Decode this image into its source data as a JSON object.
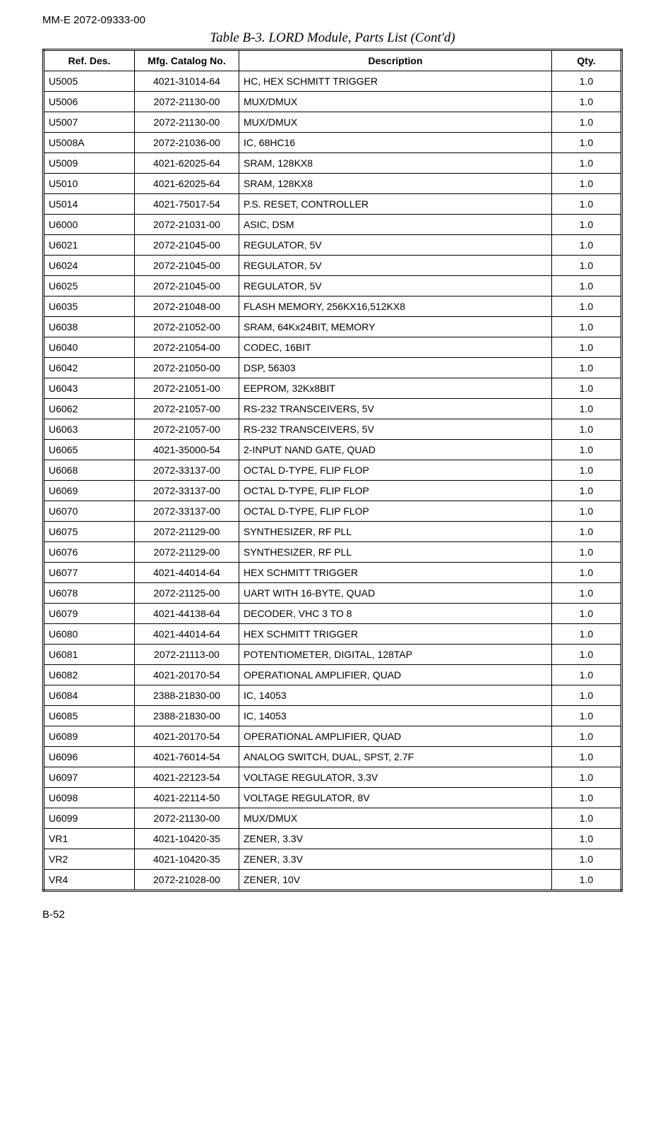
{
  "doc_id": "MM-E 2072-09333-00",
  "table_title": "Table B-3. LORD Module, Parts List (Cont'd)",
  "headers": {
    "ref": "Ref. Des.",
    "mfg": "Mfg. Catalog No.",
    "desc": "Description",
    "qty": "Qty."
  },
  "rows": [
    {
      "ref": "U5005",
      "mfg": "4021-31014-64",
      "desc": "HC, HEX SCHMITT TRIGGER",
      "qty": "1.0"
    },
    {
      "ref": "U5006",
      "mfg": "2072-21130-00",
      "desc": "MUX/DMUX",
      "qty": "1.0"
    },
    {
      "ref": "U5007",
      "mfg": "2072-21130-00",
      "desc": "MUX/DMUX",
      "qty": "1.0"
    },
    {
      "ref": "U5008A",
      "mfg": "2072-21036-00",
      "desc": "IC, 68HC16",
      "qty": "1.0"
    },
    {
      "ref": "U5009",
      "mfg": "4021-62025-64",
      "desc": "SRAM, 128KX8",
      "qty": "1.0"
    },
    {
      "ref": "U5010",
      "mfg": "4021-62025-64",
      "desc": "SRAM, 128KX8",
      "qty": "1.0"
    },
    {
      "ref": "U5014",
      "mfg": "4021-75017-54",
      "desc": "P.S. RESET, CONTROLLER",
      "qty": "1.0"
    },
    {
      "ref": "U6000",
      "mfg": "2072-21031-00",
      "desc": "ASIC, DSM",
      "qty": "1.0"
    },
    {
      "ref": "U6021",
      "mfg": "2072-21045-00",
      "desc": "REGULATOR, 5V",
      "qty": "1.0"
    },
    {
      "ref": "U6024",
      "mfg": "2072-21045-00",
      "desc": "REGULATOR, 5V",
      "qty": "1.0"
    },
    {
      "ref": "U6025",
      "mfg": "2072-21045-00",
      "desc": "REGULATOR, 5V",
      "qty": "1.0"
    },
    {
      "ref": "U6035",
      "mfg": "2072-21048-00",
      "desc": "FLASH MEMORY, 256KX16,512KX8",
      "qty": "1.0"
    },
    {
      "ref": "U6038",
      "mfg": "2072-21052-00",
      "desc": "SRAM, 64Kx24BIT, MEMORY",
      "qty": "1.0"
    },
    {
      "ref": "U6040",
      "mfg": "2072-21054-00",
      "desc": "CODEC, 16BIT",
      "qty": "1.0"
    },
    {
      "ref": "U6042",
      "mfg": "2072-21050-00",
      "desc": "DSP, 56303",
      "qty": "1.0"
    },
    {
      "ref": "U6043",
      "mfg": "2072-21051-00",
      "desc": "EEPROM, 32Kx8BIT",
      "qty": "1.0"
    },
    {
      "ref": "U6062",
      "mfg": "2072-21057-00",
      "desc": "RS-232 TRANSCEIVERS, 5V",
      "qty": "1.0"
    },
    {
      "ref": "U6063",
      "mfg": "2072-21057-00",
      "desc": "RS-232 TRANSCEIVERS, 5V",
      "qty": "1.0"
    },
    {
      "ref": "U6065",
      "mfg": "4021-35000-54",
      "desc": "2-INPUT NAND GATE, QUAD",
      "qty": "1.0"
    },
    {
      "ref": "U6068",
      "mfg": "2072-33137-00",
      "desc": "OCTAL D-TYPE, FLIP FLOP",
      "qty": "1.0"
    },
    {
      "ref": "U6069",
      "mfg": "2072-33137-00",
      "desc": "OCTAL D-TYPE, FLIP FLOP",
      "qty": "1.0"
    },
    {
      "ref": "U6070",
      "mfg": "2072-33137-00",
      "desc": "OCTAL D-TYPE, FLIP FLOP",
      "qty": "1.0"
    },
    {
      "ref": "U6075",
      "mfg": "2072-21129-00",
      "desc": "SYNTHESIZER, RF PLL",
      "qty": "1.0"
    },
    {
      "ref": "U6076",
      "mfg": "2072-21129-00",
      "desc": "SYNTHESIZER, RF PLL",
      "qty": "1.0"
    },
    {
      "ref": "U6077",
      "mfg": "4021-44014-64",
      "desc": "HEX SCHMITT TRIGGER",
      "qty": "1.0"
    },
    {
      "ref": "U6078",
      "mfg": "2072-21125-00",
      "desc": "UART WITH 16-BYTE, QUAD",
      "qty": "1.0"
    },
    {
      "ref": "U6079",
      "mfg": "4021-44138-64",
      "desc": "DECODER, VHC 3 TO 8",
      "qty": "1.0"
    },
    {
      "ref": "U6080",
      "mfg": "4021-44014-64",
      "desc": "HEX SCHMITT TRIGGER",
      "qty": "1.0"
    },
    {
      "ref": "U6081",
      "mfg": "2072-21113-00",
      "desc": "POTENTIOMETER, DIGITAL, 128TAP",
      "qty": "1.0"
    },
    {
      "ref": "U6082",
      "mfg": "4021-20170-54",
      "desc": "OPERATIONAL AMPLIFIER, QUAD",
      "qty": "1.0"
    },
    {
      "ref": "U6084",
      "mfg": "2388-21830-00",
      "desc": "IC, 14053",
      "qty": "1.0"
    },
    {
      "ref": "U6085",
      "mfg": "2388-21830-00",
      "desc": "IC, 14053",
      "qty": "1.0"
    },
    {
      "ref": "U6089",
      "mfg": "4021-20170-54",
      "desc": "OPERATIONAL AMPLIFIER, QUAD",
      "qty": "1.0"
    },
    {
      "ref": "U6096",
      "mfg": "4021-76014-54",
      "desc": "ANALOG SWITCH, DUAL, SPST, 2.7F",
      "qty": "1.0"
    },
    {
      "ref": "U6097",
      "mfg": "4021-22123-54",
      "desc": "VOLTAGE REGULATOR, 3.3V",
      "qty": "1.0"
    },
    {
      "ref": "U6098",
      "mfg": "4021-22114-50",
      "desc": "VOLTAGE REGULATOR, 8V",
      "qty": "1.0"
    },
    {
      "ref": "U6099",
      "mfg": "2072-21130-00",
      "desc": "MUX/DMUX",
      "qty": "1.0"
    },
    {
      "ref": "VR1",
      "mfg": "4021-10420-35",
      "desc": "ZENER, 3.3V",
      "qty": "1.0"
    },
    {
      "ref": "VR2",
      "mfg": "4021-10420-35",
      "desc": "ZENER, 3.3V",
      "qty": "1.0"
    },
    {
      "ref": "VR4",
      "mfg": "2072-21028-00",
      "desc": "ZENER, 10V",
      "qty": "1.0"
    }
  ],
  "page_number": "B-52"
}
